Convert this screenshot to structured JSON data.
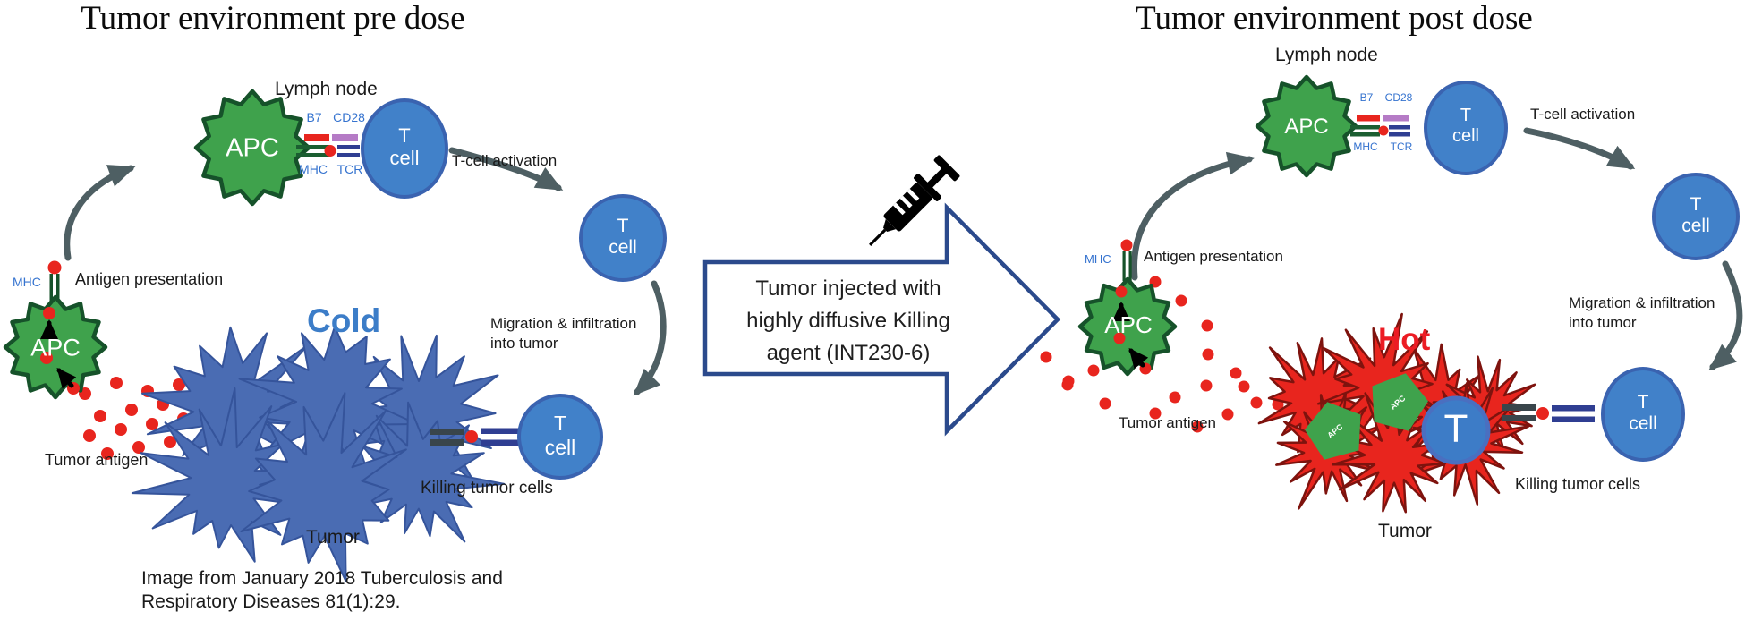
{
  "left": {
    "title": "Tumor environment pre dose",
    "lymph_node": "Lymph node",
    "state": "Cold",
    "citation": [
      "Image from January 2018 Tuberculosis and",
      "Respiratory Diseases 81(1):29."
    ]
  },
  "right": {
    "title": "Tumor environment post dose",
    "lymph_node": "Lymph node",
    "state": "Hot"
  },
  "center": {
    "arrow_text": [
      "Tumor injected with",
      "highly diffusive Killing",
      "agent (INT230-6)"
    ],
    "syringe_icon": "syringe-icon"
  },
  "labels": {
    "apc": "APC",
    "t": "T",
    "cell": "cell",
    "b7": "B7",
    "cd28": "CD28",
    "mhc": "MHC",
    "tcr": "TCR",
    "t_cell_activation": "T-cell activation",
    "migration_line1": "Migration & infiltration",
    "migration_line2": "into tumor",
    "antigen_presentation": "Antigen presentation",
    "tumor_antigen": "Tumor antigen",
    "killing_tumor_cells": "Killing tumor cells",
    "tumor": "Tumor"
  },
  "colors": {
    "apc_green": "#3FA24C",
    "apc_green_dark": "#16522A",
    "t_cell_blue": "#4181C9",
    "t_cell_border": "#3A63B0",
    "tumor_cold_blue": "#4A6CB3",
    "tumor_cold_border": "#35549B",
    "tumor_hot_red": "#E8251E",
    "tumor_hot_border": "#7E130E",
    "antigen_dot_red": "#E8251E",
    "cold_text": "#3C7DC8",
    "hot_text": "#EC1C24",
    "receptor_label_blue": "#3573CF",
    "b7_bar": "#E8251E",
    "cd28_bar": "#B57BC6",
    "mhc_bar": "#1B5E31",
    "tcr_bar": "#2F3E92",
    "flow_arrow_gray": "#4E5F63",
    "big_arrow_border": "#2B4A8C",
    "syringe_black": "#000000"
  }
}
